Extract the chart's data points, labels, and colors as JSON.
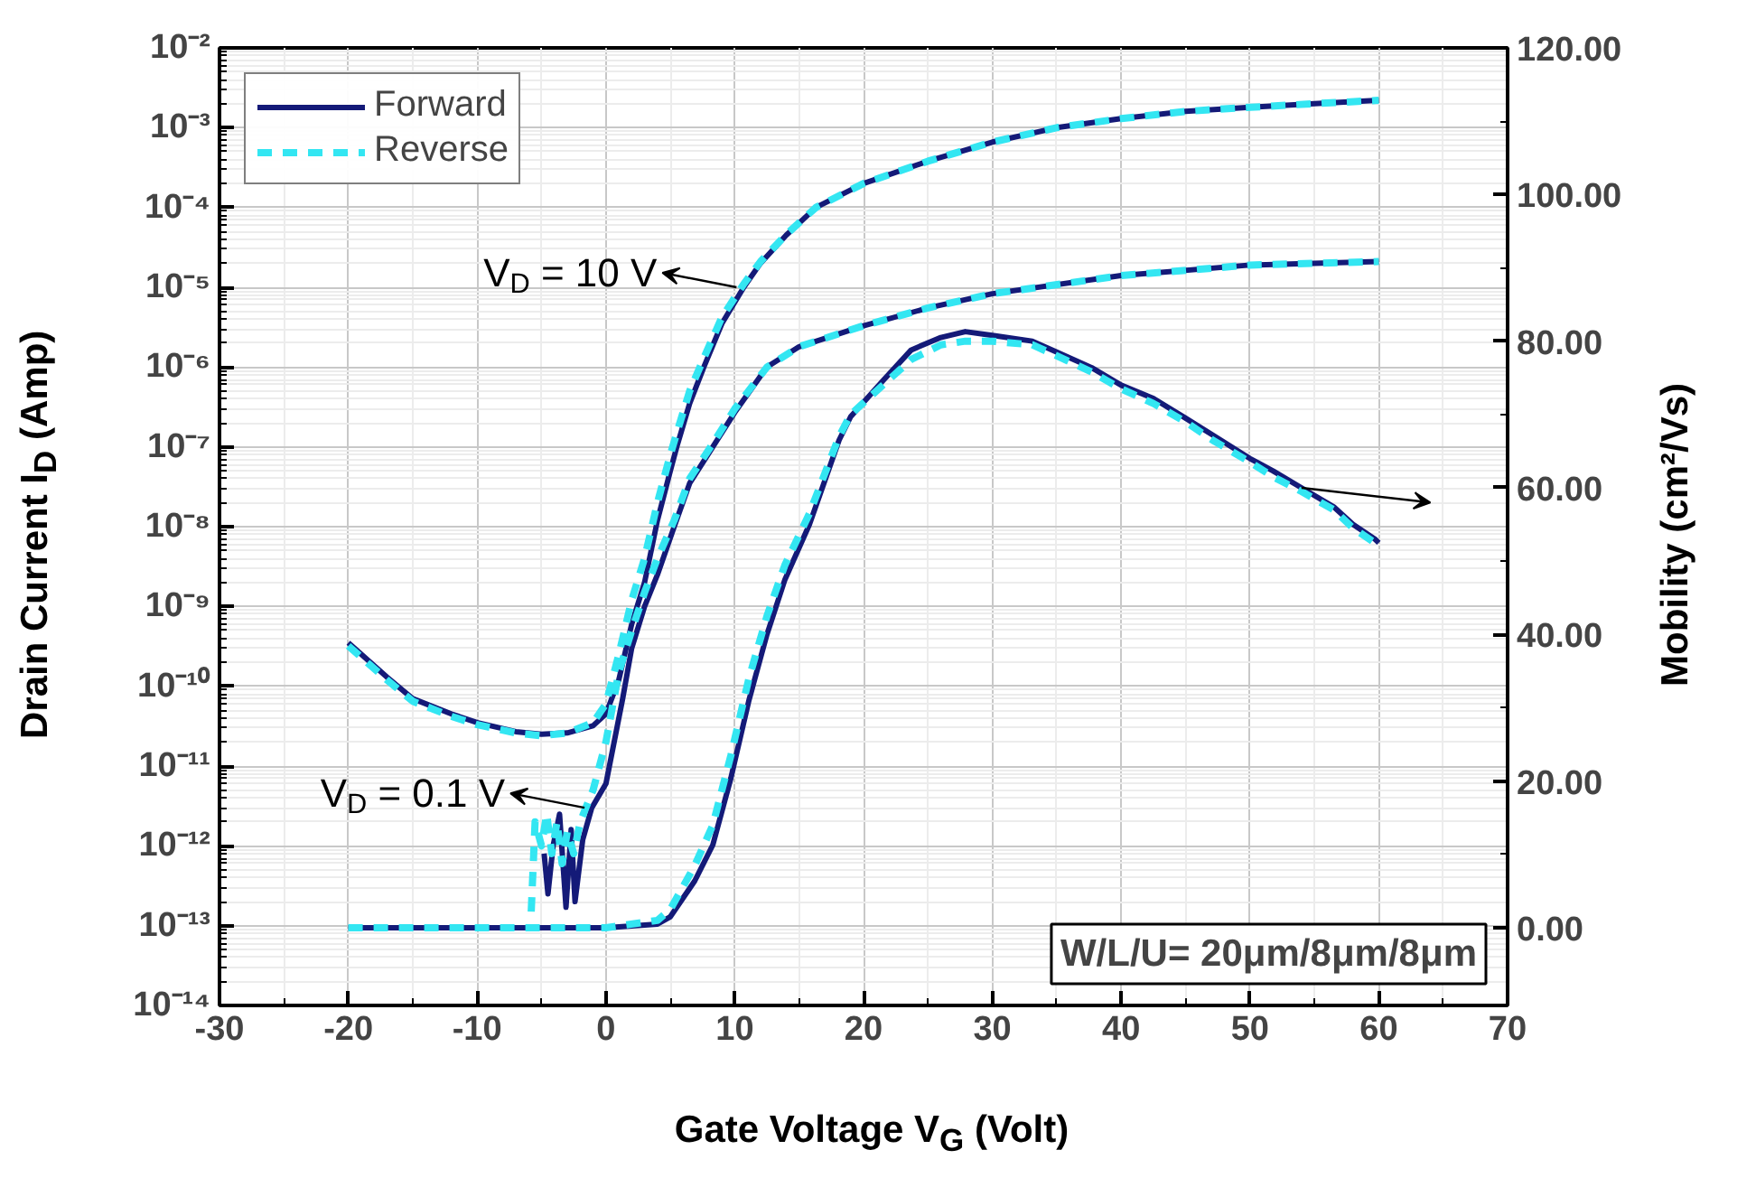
{
  "chart_data": {
    "type": "line",
    "xlabel": "Gate Voltage V$_{G}$ (Volt)",
    "ylabel": "Drain Current I$_{D}$ (Amp)",
    "y2label": "Mobility (cm²/Vs)",
    "log": "y",
    "grid": true,
    "legend": "top left",
    "xlim": [
      -30,
      70
    ],
    "xticks": [
      -30,
      -20,
      -10,
      0,
      10,
      20,
      30,
      40,
      50,
      60,
      70
    ],
    "ylim": [
      1e-14,
      0.01
    ],
    "yticks": [
      {
        "value": 1e-14,
        "label": "10⁻¹⁴"
      },
      {
        "value": 1e-13,
        "label": "10⁻¹³"
      },
      {
        "value": 1e-12,
        "label": "10⁻¹²"
      },
      {
        "value": 1e-11,
        "label": "10⁻¹¹"
      },
      {
        "value": 1e-10,
        "label": "10⁻¹⁰"
      },
      {
        "value": 1e-09,
        "label": "10⁻⁹"
      },
      {
        "value": 1e-08,
        "label": "10⁻⁸"
      },
      {
        "value": 1e-07,
        "label": "10⁻⁷"
      },
      {
        "value": 1e-06,
        "label": "10⁻⁶"
      },
      {
        "value": 1e-05,
        "label": "10⁻⁵"
      },
      {
        "value": 0.0001,
        "label": "10⁻⁴"
      },
      {
        "value": 0.001,
        "label": "10⁻³"
      },
      {
        "value": 0.01,
        "label": "10⁻²"
      }
    ],
    "y2lim": [
      -10.6,
      120
    ],
    "y2ticks": [
      {
        "value": 0,
        "label": "0.00"
      },
      {
        "value": 20,
        "label": "20.00"
      },
      {
        "value": 40,
        "label": "40.00"
      },
      {
        "value": 60,
        "label": "60.00"
      },
      {
        "value": 80,
        "label": "80.00"
      },
      {
        "value": 100,
        "label": "100.00"
      },
      {
        "value": 120,
        "label": "120.00"
      }
    ],
    "annotations": [
      {
        "text": "V$_{D}$ = 10 V",
        "x": 10.7,
        "y": 1e-05
      },
      {
        "text": "V$_{D}$ = 0.1 V",
        "x": -1.1,
        "y": 3e-12
      },
      "W/L/U= 20μm/8μm/8μm"
    ],
    "series": [
      {
        "name": "Forward",
        "color": "#141a78",
        "line_style": "solid",
        "x": [
          -20,
          -17,
          -15,
          -12,
          -10,
          -7,
          -5,
          -3,
          -1,
          0,
          1,
          2,
          3,
          4,
          5,
          5.5,
          6.5,
          7.6,
          9,
          10.7,
          12,
          14,
          16.3,
          20,
          25,
          30,
          35,
          40,
          45,
          50,
          55,
          60
        ],
        "values": [
          3.5e-10,
          1.3e-10,
          7e-11,
          4.5e-11,
          3.5e-11,
          2.7e-11,
          2.5e-11,
          2.6e-11,
          3.2e-11,
          4.5e-11,
          1.2e-10,
          6e-10,
          2e-09,
          1.2e-08,
          5e-08,
          1e-07,
          3.5e-07,
          1e-06,
          3.5e-06,
          1e-05,
          2e-05,
          4.5e-05,
          0.0001,
          0.0002,
          0.00038,
          0.00066,
          0.001,
          0.0013,
          0.0016,
          0.0018,
          0.002,
          0.0022
        ]
      },
      {
        "name": "Reverse",
        "color": "#33e6f2",
        "line_style": "dashed",
        "x": [
          -20,
          -17,
          -15,
          -12,
          -10,
          -7,
          -5,
          -3,
          -1,
          0,
          1,
          2,
          3,
          4,
          5,
          5.5,
          6.5,
          7.6,
          9,
          10.7,
          12,
          14,
          16.3,
          20,
          25,
          30,
          35,
          40,
          45,
          50,
          55,
          60
        ],
        "values": [
          3.2e-10,
          1.2e-10,
          6.5e-11,
          4.2e-11,
          3.3e-11,
          2.6e-11,
          2.4e-11,
          2.6e-11,
          3.5e-11,
          6e-11,
          2.5e-10,
          1.2e-09,
          4e-09,
          2e-08,
          8e-08,
          1.5e-07,
          5e-07,
          1.3e-06,
          4.2e-06,
          1.1e-05,
          2.1e-05,
          4.6e-05,
          0.0001,
          0.0002,
          0.00038,
          0.00066,
          0.001,
          0.0013,
          0.0016,
          0.0018,
          0.002,
          0.0022
        ]
      },
      {
        "color": "#141a78",
        "line_style": "solid",
        "x": [
          -4.8,
          -4.5,
          -4.1,
          -3.6,
          -3.1,
          -2.7,
          -2.4,
          -1.8,
          -1.1,
          0,
          1.3,
          2,
          3,
          4,
          5.3,
          6.5,
          8.3,
          10,
          12.5,
          15,
          20,
          25,
          30,
          40,
          50,
          60
        ],
        "values": [
          8e-13,
          2.5e-13,
          1e-12,
          2.5e-12,
          1.7e-13,
          1.6e-12,
          2e-13,
          1.2e-12,
          3e-12,
          6e-12,
          7e-11,
          3e-10,
          1e-09,
          2.5e-09,
          1e-08,
          3.5e-08,
          1e-07,
          2.7e-07,
          1e-06,
          1.8e-06,
          3.3e-06,
          5.5e-06,
          8.3e-06,
          1.4e-05,
          1.9e-05,
          2.1e-05
        ]
      },
      {
        "color": "#33e6f2",
        "line_style": "dashed",
        "x": [
          -5.8,
          -5.5,
          -5,
          -4.6,
          -4.2,
          -3.8,
          -3.4,
          -3,
          -2.5,
          -2,
          -1,
          0,
          1,
          2,
          3,
          4,
          5.3,
          6.5,
          8.3,
          10,
          12.5,
          15,
          20,
          25,
          30,
          40,
          50,
          60
        ],
        "values": [
          1.5e-13,
          2e-12,
          1e-12,
          2.5e-12,
          8e-13,
          2e-12,
          6e-13,
          1.5e-12,
          8e-13,
          2e-12,
          5e-12,
          2e-11,
          1.5e-10,
          5e-10,
          1.5e-09,
          4e-09,
          1.2e-08,
          4e-08,
          1.1e-07,
          3e-07,
          1e-06,
          1.8e-06,
          3.3e-06,
          5.5e-06,
          8.3e-06,
          1.4e-05,
          1.9e-05,
          2.1e-05
        ]
      },
      {
        "color": "#141a78",
        "line_style": "solid",
        "axis": "y2",
        "x": [
          -20,
          -15,
          -10,
          -5,
          0,
          4,
          5,
          6.9,
          8.3,
          9.7,
          11.1,
          12.5,
          13.9,
          15.8,
          18.1,
          19,
          21.5,
          23.7,
          26,
          27.9,
          30,
          33.1,
          35,
          37.7,
          40,
          42.5,
          45,
          47.1,
          50,
          51.8,
          54,
          56.5,
          58,
          59.7,
          60
        ],
        "values": [
          0,
          0,
          0,
          0,
          0,
          0.5,
          1.5,
          6.4,
          11.3,
          20.4,
          31,
          40,
          47.5,
          55,
          66.5,
          69.7,
          74.6,
          78.8,
          80.5,
          81.3,
          80.8,
          80,
          78.5,
          76.4,
          74,
          72.2,
          69.5,
          67.2,
          64,
          62.3,
          60,
          57.4,
          55,
          53,
          52.5
        ]
      },
      {
        "color": "#33e6f2",
        "line_style": "dashed",
        "axis": "y2",
        "x": [
          -20,
          -15,
          -10,
          -5,
          0,
          4,
          5,
          6.9,
          8.3,
          9.7,
          11.1,
          12.5,
          13.9,
          15.8,
          18.1,
          19,
          21.5,
          23.7,
          26,
          27.9,
          30,
          33.1,
          35,
          37.7,
          40,
          42.5,
          45,
          47.1,
          50,
          51.8,
          54,
          56.5,
          58,
          59.7,
          60
        ],
        "values": [
          0,
          0,
          0,
          0,
          0,
          1,
          2.5,
          8.5,
          14,
          23.5,
          34,
          42.5,
          49.5,
          56.5,
          67,
          70,
          74,
          77.5,
          79.5,
          80,
          80,
          79.5,
          78,
          75.8,
          73.5,
          71.5,
          69,
          66.5,
          63.5,
          61.5,
          59.5,
          57,
          54.5,
          52.5,
          52
        ]
      }
    ]
  }
}
